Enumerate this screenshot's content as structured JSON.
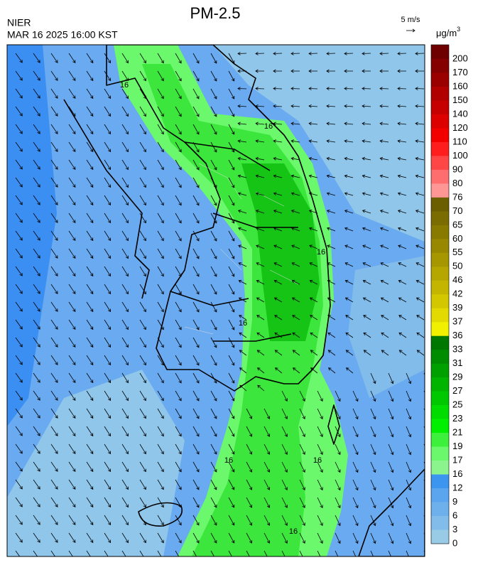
{
  "header": {
    "title": "PM-2.5",
    "agency": "NIER",
    "time": "MAR 16 2025 16:00 KST",
    "wind_scale": "5 m/s",
    "unit": "μg/m",
    "unit_power": "3"
  },
  "colorbar": {
    "labels": [
      200,
      170,
      160,
      150,
      140,
      120,
      110,
      100,
      90,
      80,
      76,
      70,
      65,
      60,
      55,
      50,
      46,
      42,
      39,
      37,
      36,
      33,
      31,
      29,
      27,
      25,
      23,
      21,
      19,
      17,
      16,
      12,
      9,
      6,
      3,
      0
    ],
    "colors": [
      "#6e0000",
      "#850000",
      "#9a0000",
      "#b00000",
      "#c60000",
      "#dc0000",
      "#f20000",
      "#ff1e1e",
      "#ff4646",
      "#ff6e6e",
      "#ff9696",
      "#6b5e00",
      "#7a6c00",
      "#887a00",
      "#978800",
      "#a69600",
      "#b5a600",
      "#c4b600",
      "#d3c800",
      "#e2da00",
      "#f0f000",
      "#007800",
      "#008c00",
      "#00a000",
      "#00b400",
      "#00c800",
      "#00dc00",
      "#00f000",
      "#3cf03c",
      "#6cf86c",
      "#8cf48c",
      "#3c96f0",
      "#5aa5ee",
      "#6eb0ec",
      "#82bcea",
      "#9acbe6"
    ]
  },
  "map": {
    "contour_labels": [
      16,
      16,
      16,
      16,
      16,
      16,
      16
    ]
  }
}
